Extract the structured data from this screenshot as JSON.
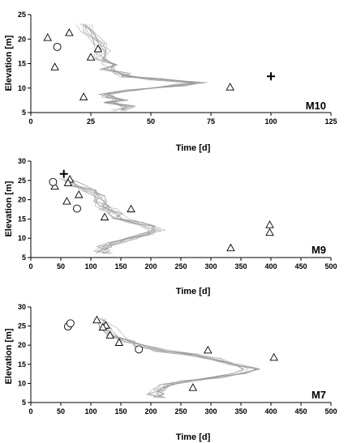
{
  "colors": {
    "axis": "#000000",
    "sim_line": "#9a9a9a",
    "marker": "#000000"
  },
  "chart_data": [
    {
      "type": "line",
      "panel_label": "M10",
      "xlabel": "Time [d]",
      "ylabel": "Elevation [m]",
      "xlim": [
        0,
        125
      ],
      "ylim": [
        5,
        25
      ],
      "xticks": [
        0,
        25,
        50,
        75,
        100,
        125
      ],
      "xtick_labels": [
        "0",
        "25",
        "50",
        "75",
        "100",
        "125"
      ],
      "yticks": [
        5,
        10,
        15,
        20,
        25
      ],
      "ytick_labels": [
        "5",
        "10",
        "15",
        "20",
        "25"
      ],
      "grid": false,
      "profile": [
        [
          22,
          23
        ],
        [
          24,
          21.5
        ],
        [
          28,
          19
        ],
        [
          30,
          17.5
        ],
        [
          29,
          16
        ],
        [
          33,
          14.8
        ],
        [
          32,
          13.8
        ],
        [
          38,
          13
        ],
        [
          40,
          12.4
        ],
        [
          52,
          11.8
        ],
        [
          70,
          11.1
        ],
        [
          63,
          10.6
        ],
        [
          54,
          10.1
        ],
        [
          41,
          9.5
        ],
        [
          32,
          8.8
        ],
        [
          33,
          8.2
        ],
        [
          38,
          7.6
        ],
        [
          34,
          7.1
        ],
        [
          40,
          6.3
        ],
        [
          37,
          5.4
        ]
      ],
      "triangles": [
        [
          7,
          20.3
        ],
        [
          16,
          21.3
        ],
        [
          28,
          18
        ],
        [
          10,
          14.3
        ],
        [
          25,
          16.3
        ],
        [
          22,
          8.2
        ],
        [
          83,
          10.2
        ]
      ],
      "circles": [
        [
          11,
          18.4
        ]
      ],
      "plus": [
        [
          100,
          12.4
        ]
      ]
    },
    {
      "type": "line",
      "panel_label": "M9",
      "xlabel": "Time [d]",
      "ylabel": "Elevation [m]",
      "xlim": [
        0,
        500
      ],
      "ylim": [
        5,
        30
      ],
      "xticks": [
        0,
        50,
        100,
        150,
        200,
        250,
        300,
        350,
        400,
        450,
        500
      ],
      "xtick_labels": [
        "0",
        "50",
        "100",
        "150",
        "200",
        "250",
        "300",
        "350",
        "400",
        "450",
        "500"
      ],
      "yticks": [
        5,
        10,
        15,
        20,
        25,
        30
      ],
      "ytick_labels": [
        "5",
        "10",
        "15",
        "20",
        "25",
        "30"
      ],
      "grid": false,
      "profile": [
        [
          55,
          25.5
        ],
        [
          75,
          23.8
        ],
        [
          95,
          22.4
        ],
        [
          110,
          21
        ],
        [
          115,
          19.5
        ],
        [
          118,
          18.3
        ],
        [
          128,
          17.5
        ],
        [
          140,
          16.5
        ],
        [
          150,
          15.2
        ],
        [
          175,
          14.2
        ],
        [
          195,
          13.2
        ],
        [
          210,
          12.1
        ],
        [
          190,
          11
        ],
        [
          165,
          10
        ],
        [
          140,
          8.8
        ],
        [
          122,
          7.8
        ],
        [
          118,
          6.8
        ],
        [
          122,
          6
        ]
      ],
      "triangles": [
        [
          40,
          23.5
        ],
        [
          65,
          25.3
        ],
        [
          62,
          24.4
        ],
        [
          60,
          19.6
        ],
        [
          80,
          21.3
        ],
        [
          123,
          15.5
        ],
        [
          167,
          17.6
        ],
        [
          333,
          7.5
        ],
        [
          398,
          13.5
        ],
        [
          398,
          11.5
        ]
      ],
      "circles": [
        [
          37,
          24.6
        ],
        [
          77,
          17.7
        ]
      ],
      "plus": [
        [
          55,
          26.7
        ]
      ]
    },
    {
      "type": "line",
      "panel_label": "M7",
      "xlabel": "Time [d]",
      "ylabel": "Elevation [m]",
      "xlim": [
        0,
        500
      ],
      "ylim": [
        5,
        30
      ],
      "xticks": [
        0,
        50,
        100,
        150,
        200,
        250,
        300,
        350,
        400,
        450,
        500
      ],
      "xtick_labels": [
        "0",
        "50",
        "100",
        "150",
        "200",
        "250",
        "300",
        "350",
        "400",
        "450",
        "500"
      ],
      "yticks": [
        5,
        10,
        15,
        20,
        25,
        30
      ],
      "ytick_labels": [
        "5",
        "10",
        "15",
        "20",
        "25",
        "30"
      ],
      "grid": false,
      "profile": [
        [
          118,
          27
        ],
        [
          128,
          24.5
        ],
        [
          140,
          22.5
        ],
        [
          160,
          21
        ],
        [
          185,
          19.8
        ],
        [
          220,
          18.5
        ],
        [
          265,
          17.6
        ],
        [
          305,
          16.4
        ],
        [
          340,
          15
        ],
        [
          368,
          13.8
        ],
        [
          350,
          12.6
        ],
        [
          310,
          11.6
        ],
        [
          262,
          10.6
        ],
        [
          228,
          9.6
        ],
        [
          212,
          8.4
        ],
        [
          208,
          7.2
        ],
        [
          212,
          6.2
        ]
      ],
      "triangles": [
        [
          110,
          26.6
        ],
        [
          125,
          25.2
        ],
        [
          120,
          24.7
        ],
        [
          132,
          22.6
        ],
        [
          147,
          20.7
        ],
        [
          295,
          18.7
        ],
        [
          405,
          16.8
        ],
        [
          270,
          8.9
        ]
      ],
      "circles": [
        [
          62,
          24.9
        ],
        [
          66,
          25.7
        ],
        [
          180,
          18.9
        ]
      ],
      "plus": []
    }
  ]
}
